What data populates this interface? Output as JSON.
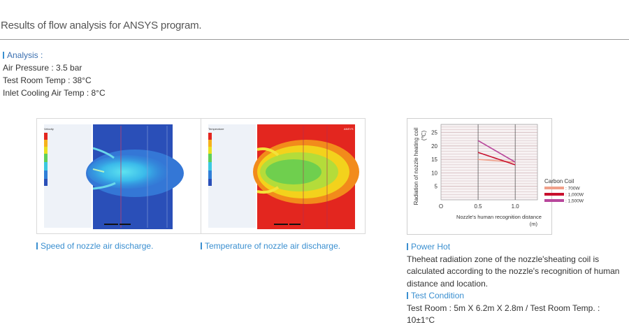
{
  "page": {
    "title": "Results of flow analysis for ANSYS program."
  },
  "analysis": {
    "heading": "Analysis :",
    "lines": [
      "Air Pressure : 3.5 bar",
      "Test Room Temp : 38°C",
      "Inlet Cooling Air Temp : 8°C"
    ]
  },
  "figures": {
    "speed_caption": "Speed of nozzle air discharge.",
    "temp_caption": "Temperature of nozzle air discharge.",
    "speed_legend_title": "Velocity",
    "temp_legend_title": "Temperature",
    "ansys_label": "ANSYS"
  },
  "chart_data": {
    "type": "line",
    "xlabel": "Nozzle's human recognition distance",
    "xunit": "(m)",
    "ylabel": "Radiation of nozzle heating coil",
    "yunit": "(℃)",
    "xlim": [
      0,
      1.3
    ],
    "ylim": [
      0,
      28
    ],
    "xticks": [
      "O",
      "0.5",
      "1.0"
    ],
    "yticks": [
      "5",
      "10",
      "15",
      "20",
      "25"
    ],
    "legend_title": "Carbon Coil",
    "legend_position": "right",
    "series": [
      {
        "name": ": 700W",
        "color": "#f0a08a",
        "x": [
          0.5,
          1.0
        ],
        "y": [
          15.0,
          14.0
        ]
      },
      {
        "name": ": 1,000W",
        "color": "#c8102e",
        "x": [
          0.5,
          1.0
        ],
        "y": [
          17.6,
          13.0
        ]
      },
      {
        "name": ": 1,500W",
        "color": "#b8479c",
        "x": [
          0.5,
          1.0
        ],
        "y": [
          22.0,
          14.0
        ]
      }
    ]
  },
  "power_hot": {
    "heading": "Power Hot",
    "text": "Theheat radiation zone of the nozzle'sheating coil is calculated according to the nozzle's recognition of human distance and location.",
    "test_heading": "Test Condition",
    "test_text": "Test Room : 5m X 6.2m X 2.8m / Test Room Temp. : 10±1°C"
  },
  "colors": {
    "accent": "#3a8fd0",
    "speed_bg": "#2a4fb8",
    "temp_bg": "#e3261f"
  }
}
